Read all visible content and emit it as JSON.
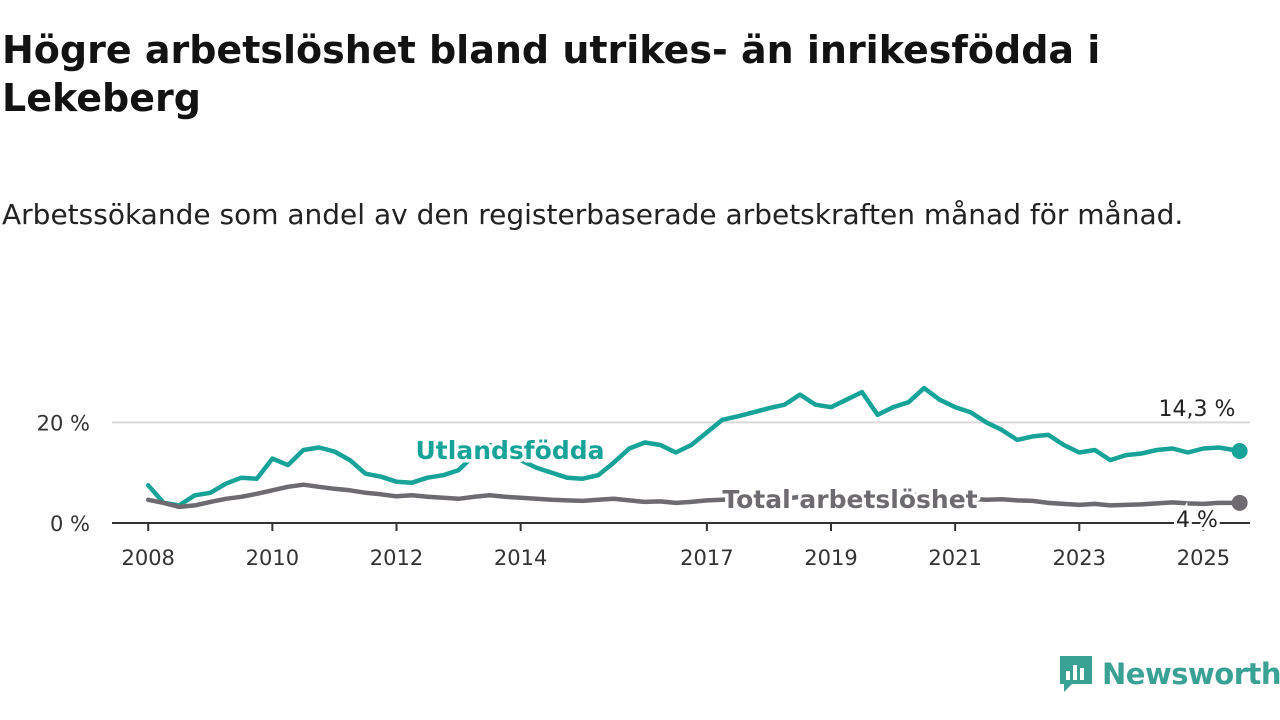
{
  "title": "Högre arbetslöshet bland utrikes- än inrikesfödda i Lekeberg",
  "subtitle": "Arbetssökande som andel av den registerbaserade arbetskraften månad för månad.",
  "brand": {
    "name": "Newsworthy",
    "color": "#3aa195",
    "icon": "bar-chart-icon"
  },
  "chart_data": {
    "type": "line",
    "x_ticks": [
      "2008",
      "2010",
      "2012",
      "2014",
      "2017",
      "2019",
      "2021",
      "2023",
      "2025"
    ],
    "y_ticks": [
      "0 %",
      "20 %"
    ],
    "ylim": [
      0,
      30
    ],
    "xlim": [
      "2007-06",
      "2025-10"
    ],
    "grid": true,
    "series": [
      {
        "name": "Utlandsfödda",
        "color": "#17a398",
        "end_label": "14,3 %",
        "points": [
          [
            "2008-01",
            7.5
          ],
          [
            "2008-04",
            4.0
          ],
          [
            "2008-07",
            3.5
          ],
          [
            "2008-10",
            5.5
          ],
          [
            "2009-01",
            6.0
          ],
          [
            "2009-04",
            7.8
          ],
          [
            "2009-07",
            9.0
          ],
          [
            "2009-10",
            8.8
          ],
          [
            "2010-01",
            12.8
          ],
          [
            "2010-04",
            11.5
          ],
          [
            "2010-07",
            14.5
          ],
          [
            "2010-10",
            15.0
          ],
          [
            "2011-01",
            14.2
          ],
          [
            "2011-04",
            12.5
          ],
          [
            "2011-07",
            9.8
          ],
          [
            "2011-10",
            9.2
          ],
          [
            "2012-01",
            8.2
          ],
          [
            "2012-04",
            8.0
          ],
          [
            "2012-07",
            9.0
          ],
          [
            "2012-10",
            9.5
          ],
          [
            "2013-01",
            10.5
          ],
          [
            "2013-04",
            13.5
          ],
          [
            "2013-07",
            15.5
          ],
          [
            "2013-10",
            14.5
          ],
          [
            "2014-01",
            12.5
          ],
          [
            "2014-04",
            11.0
          ],
          [
            "2014-07",
            10.0
          ],
          [
            "2014-10",
            9.0
          ],
          [
            "2015-01",
            8.8
          ],
          [
            "2015-04",
            9.5
          ],
          [
            "2015-07",
            12.0
          ],
          [
            "2015-10",
            14.8
          ],
          [
            "2016-01",
            16.0
          ],
          [
            "2016-04",
            15.5
          ],
          [
            "2016-07",
            14.0
          ],
          [
            "2016-10",
            15.5
          ],
          [
            "2017-01",
            18.0
          ],
          [
            "2017-04",
            20.5
          ],
          [
            "2017-07",
            21.2
          ],
          [
            "2017-10",
            22.0
          ],
          [
            "2018-01",
            22.8
          ],
          [
            "2018-04",
            23.5
          ],
          [
            "2018-07",
            25.5
          ],
          [
            "2018-10",
            23.5
          ],
          [
            "2019-01",
            23.0
          ],
          [
            "2019-04",
            24.5
          ],
          [
            "2019-07",
            26.0
          ],
          [
            "2019-10",
            21.5
          ],
          [
            "2020-01",
            23.0
          ],
          [
            "2020-04",
            24.0
          ],
          [
            "2020-07",
            26.8
          ],
          [
            "2020-10",
            24.5
          ],
          [
            "2021-01",
            23.0
          ],
          [
            "2021-04",
            22.0
          ],
          [
            "2021-07",
            20.0
          ],
          [
            "2021-10",
            18.5
          ],
          [
            "2022-01",
            16.5
          ],
          [
            "2022-04",
            17.2
          ],
          [
            "2022-07",
            17.5
          ],
          [
            "2022-10",
            15.5
          ],
          [
            "2023-01",
            14.0
          ],
          [
            "2023-04",
            14.5
          ],
          [
            "2023-07",
            12.5
          ],
          [
            "2023-10",
            13.5
          ],
          [
            "2024-01",
            13.8
          ],
          [
            "2024-04",
            14.5
          ],
          [
            "2024-07",
            14.8
          ],
          [
            "2024-10",
            14.0
          ],
          [
            "2025-01",
            14.8
          ],
          [
            "2025-04",
            15.0
          ],
          [
            "2025-08",
            14.3
          ]
        ]
      },
      {
        "name": "Total arbetslöshet",
        "color": "#6d6b70",
        "end_label": "4 %",
        "points": [
          [
            "2008-01",
            4.6
          ],
          [
            "2008-04",
            4.0
          ],
          [
            "2008-07",
            3.2
          ],
          [
            "2008-10",
            3.5
          ],
          [
            "2009-01",
            4.2
          ],
          [
            "2009-04",
            4.8
          ],
          [
            "2009-07",
            5.2
          ],
          [
            "2009-10",
            5.8
          ],
          [
            "2010-01",
            6.5
          ],
          [
            "2010-04",
            7.2
          ],
          [
            "2010-07",
            7.6
          ],
          [
            "2010-10",
            7.2
          ],
          [
            "2011-01",
            6.8
          ],
          [
            "2011-04",
            6.5
          ],
          [
            "2011-07",
            6.0
          ],
          [
            "2011-10",
            5.7
          ],
          [
            "2012-01",
            5.3
          ],
          [
            "2012-04",
            5.5
          ],
          [
            "2012-07",
            5.2
          ],
          [
            "2012-10",
            5.0
          ],
          [
            "2013-01",
            4.8
          ],
          [
            "2013-04",
            5.2
          ],
          [
            "2013-07",
            5.5
          ],
          [
            "2013-10",
            5.2
          ],
          [
            "2014-01",
            5.0
          ],
          [
            "2014-04",
            4.8
          ],
          [
            "2014-07",
            4.6
          ],
          [
            "2014-10",
            4.5
          ],
          [
            "2015-01",
            4.4
          ],
          [
            "2015-04",
            4.6
          ],
          [
            "2015-07",
            4.8
          ],
          [
            "2015-10",
            4.5
          ],
          [
            "2016-01",
            4.2
          ],
          [
            "2016-04",
            4.3
          ],
          [
            "2016-07",
            4.0
          ],
          [
            "2016-10",
            4.2
          ],
          [
            "2017-01",
            4.5
          ],
          [
            "2017-04",
            4.6
          ],
          [
            "2017-07",
            4.7
          ],
          [
            "2017-10",
            4.9
          ],
          [
            "2018-01",
            5.0
          ],
          [
            "2018-04",
            4.8
          ],
          [
            "2018-07",
            5.2
          ],
          [
            "2018-10",
            4.9
          ],
          [
            "2019-01",
            4.7
          ],
          [
            "2019-04",
            4.9
          ],
          [
            "2019-07",
            5.0
          ],
          [
            "2019-10",
            4.8
          ],
          [
            "2020-01",
            5.0
          ],
          [
            "2020-04",
            5.4
          ],
          [
            "2020-07",
            5.8
          ],
          [
            "2020-10",
            5.3
          ],
          [
            "2021-01",
            5.0
          ],
          [
            "2021-04",
            4.8
          ],
          [
            "2021-07",
            4.6
          ],
          [
            "2021-10",
            4.7
          ],
          [
            "2022-01",
            4.5
          ],
          [
            "2022-04",
            4.4
          ],
          [
            "2022-07",
            4.0
          ],
          [
            "2022-10",
            3.8
          ],
          [
            "2023-01",
            3.6
          ],
          [
            "2023-04",
            3.8
          ],
          [
            "2023-07",
            3.5
          ],
          [
            "2023-10",
            3.6
          ],
          [
            "2024-01",
            3.7
          ],
          [
            "2024-04",
            3.9
          ],
          [
            "2024-07",
            4.1
          ],
          [
            "2024-10",
            3.9
          ],
          [
            "2025-01",
            3.8
          ],
          [
            "2025-04",
            4.0
          ],
          [
            "2025-08",
            4.0
          ]
        ]
      }
    ]
  }
}
